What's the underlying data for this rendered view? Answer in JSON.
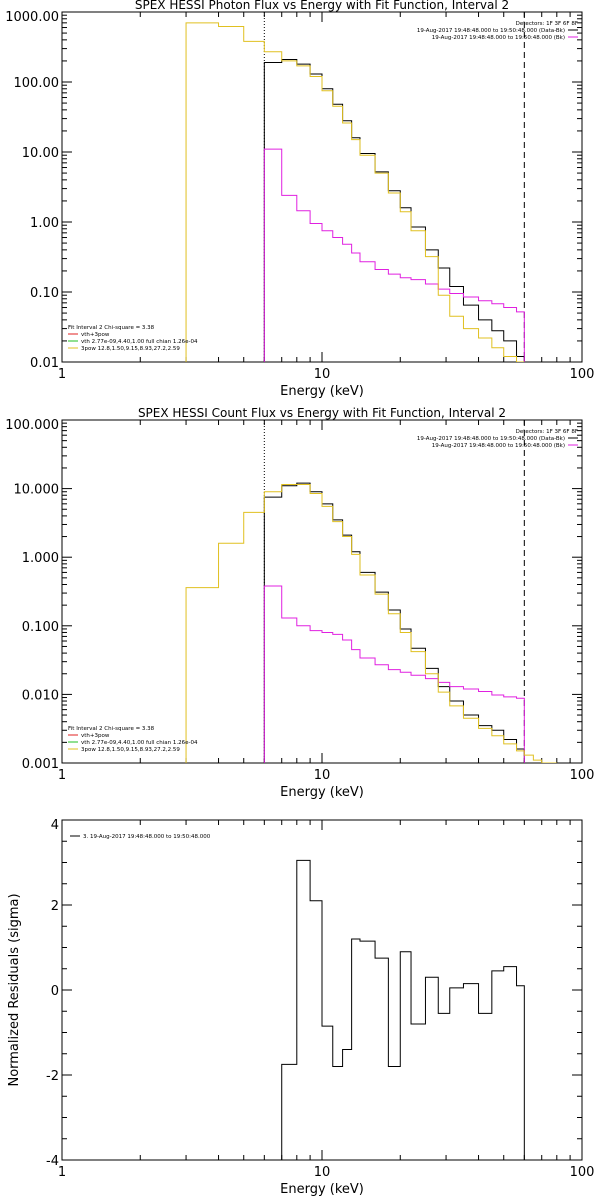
{
  "chart_data": [
    {
      "type": "line",
      "title": "SPEX HESSI Photon Flux vs Energy with Fit Function, Interval 2",
      "xlabel": "Energy (keV)",
      "ylabel": "",
      "xscale": "log",
      "yscale": "log",
      "xlim": [
        1,
        100
      ],
      "ylim": [
        0.01,
        1000
      ],
      "xticks": [
        "1",
        "10",
        "100"
      ],
      "yticks": [
        "0.01",
        "0.10",
        "1.00",
        "10.00",
        "100.00",
        "1000.00"
      ],
      "vlines": [
        {
          "x": 6,
          "style": "dotted"
        },
        {
          "x": 60,
          "style": "dashed"
        }
      ],
      "legend_top_right": [
        {
          "text": "Detectors: 1F 3F 6F 8F",
          "color": "#000000",
          "marker": false
        },
        {
          "text": "19-Aug-2017 19:48:48.000 to 19:50:48.000 (Data-Bk)",
          "color": "#000000",
          "marker": true
        },
        {
          "text": "19-Aug-2017 19:48:48.000 to 19:50:48.000 (Bk)",
          "color": "#e020e0",
          "marker": true
        }
      ],
      "legend_bottom_left": [
        {
          "text": "Fit Interval 2   Chi-square = 3.38",
          "color": "#000000",
          "marker": false
        },
        {
          "text": "vth+3pow",
          "color": "#e02020",
          "marker": true
        },
        {
          "text": "vth 2.77e-09,4.40,1.00  full chian 1.26e-04",
          "color": "#20c020",
          "marker": true
        },
        {
          "text": "3pow 12.8,1.50,9.15,8.93,27.2,2.59",
          "color": "#e0c020",
          "marker": true
        }
      ],
      "series": [
        {
          "color": "#000000",
          "edges": [
            6,
            7,
            8,
            9,
            10,
            11,
            12,
            13,
            14,
            16,
            18,
            20,
            22,
            25,
            28,
            31,
            35,
            40,
            45,
            50,
            56,
            60
          ],
          "values": [
            190,
            210,
            180,
            130,
            80,
            48,
            28,
            16,
            9.5,
            5.2,
            2.8,
            1.6,
            0.85,
            0.4,
            0.22,
            0.12,
            0.065,
            0.04,
            0.028,
            0.02,
            0.012
          ]
        },
        {
          "color": "#e020e0",
          "edges": [
            6,
            7,
            8,
            9,
            10,
            11,
            12,
            13,
            14,
            16,
            18,
            20,
            22,
            25,
            28,
            31,
            35,
            40,
            45,
            50,
            56,
            60
          ],
          "values": [
            11,
            2.4,
            1.45,
            0.95,
            0.75,
            0.6,
            0.48,
            0.36,
            0.27,
            0.21,
            0.18,
            0.16,
            0.15,
            0.13,
            0.11,
            0.095,
            0.085,
            0.075,
            0.068,
            0.06,
            0.052
          ]
        },
        {
          "color": "#e0c020",
          "edges": [
            3,
            4,
            5,
            6,
            7,
            8,
            9,
            10,
            11,
            12,
            13,
            14,
            16,
            18,
            20,
            22,
            25,
            28,
            31,
            35,
            40,
            45,
            50,
            56,
            60
          ],
          "values": [
            700,
            620,
            380,
            270,
            200,
            170,
            120,
            75,
            45,
            26,
            15,
            9,
            5,
            2.6,
            1.4,
            0.75,
            0.32,
            0.09,
            0.045,
            0.03,
            0.022,
            0.016,
            0.012,
            0.01
          ]
        }
      ]
    },
    {
      "type": "line",
      "title": "SPEX HESSI Count Flux vs Energy with Fit Function, Interval 2",
      "xlabel": "Energy (keV)",
      "ylabel": "",
      "xscale": "log",
      "yscale": "log",
      "xlim": [
        1,
        100
      ],
      "ylim": [
        0.001,
        100
      ],
      "xticks": [
        "1",
        "10",
        "100"
      ],
      "yticks": [
        "0.001",
        "0.010",
        "0.100",
        "1.000",
        "10.000",
        "100.000"
      ],
      "vlines": [
        {
          "x": 6,
          "style": "dotted"
        },
        {
          "x": 60,
          "style": "dashed"
        }
      ],
      "legend_top_right": [
        {
          "text": "Detectors: 1F 3F 6F 8F",
          "color": "#000000",
          "marker": false
        },
        {
          "text": "19-Aug-2017 19:48:48.000 to 19:50:48.000 (Data-Bk)",
          "color": "#000000",
          "marker": true
        },
        {
          "text": "19-Aug-2017 19:48:48.000 to 19:50:48.000 (Bk)",
          "color": "#e020e0",
          "marker": true
        }
      ],
      "legend_bottom_left": [
        {
          "text": "Fit Interval 2   Chi-square = 3.38",
          "color": "#000000",
          "marker": false
        },
        {
          "text": "vth+3pow",
          "color": "#e02020",
          "marker": true
        },
        {
          "text": "vth 2.77e-09,4.40,1.00  full chian 1.26e-04",
          "color": "#20c020",
          "marker": true
        },
        {
          "text": "3pow 12.8,1.50,9.15,8.93,27.2,2.59",
          "color": "#e0c020",
          "marker": true
        }
      ],
      "series": [
        {
          "color": "#000000",
          "edges": [
            6,
            7,
            8,
            9,
            10,
            11,
            12,
            13,
            14,
            16,
            18,
            20,
            22,
            25,
            28,
            31,
            35,
            40,
            45,
            50,
            56,
            60
          ],
          "values": [
            7.5,
            11,
            12,
            9,
            6,
            3.5,
            2.1,
            1.2,
            0.6,
            0.31,
            0.17,
            0.09,
            0.047,
            0.024,
            0.013,
            0.008,
            0.005,
            0.0035,
            0.003,
            0.0022,
            0.0016
          ]
        },
        {
          "color": "#e020e0",
          "edges": [
            6,
            7,
            8,
            9,
            10,
            11,
            12,
            13,
            14,
            16,
            18,
            20,
            22,
            25,
            28,
            31,
            35,
            40,
            45,
            50,
            56,
            60
          ],
          "values": [
            0.38,
            0.13,
            0.1,
            0.085,
            0.08,
            0.075,
            0.062,
            0.045,
            0.034,
            0.027,
            0.023,
            0.021,
            0.019,
            0.017,
            0.015,
            0.013,
            0.012,
            0.011,
            0.0098,
            0.0092,
            0.0088
          ]
        },
        {
          "color": "#e0c020",
          "edges": [
            3,
            4,
            5,
            6,
            7,
            8,
            9,
            10,
            11,
            12,
            13,
            14,
            16,
            18,
            20,
            22,
            25,
            28,
            31,
            35,
            40,
            45,
            50,
            56,
            60,
            65,
            70,
            75,
            80
          ],
          "values": [
            0.36,
            1.6,
            4.5,
            9,
            11.5,
            11.5,
            8.5,
            5.5,
            3.3,
            2,
            1.1,
            0.55,
            0.29,
            0.15,
            0.08,
            0.042,
            0.02,
            0.0108,
            0.0068,
            0.0045,
            0.0032,
            0.0025,
            0.0019,
            0.0015,
            0.0013,
            0.0011,
            0.001,
            0.001
          ]
        }
      ]
    },
    {
      "type": "line",
      "title": "",
      "xlabel": "Energy (keV)",
      "ylabel": "Normalized Residuals (sigma)",
      "xscale": "log",
      "yscale": "linear",
      "xlim": [
        1,
        100
      ],
      "ylim": [
        -4,
        4
      ],
      "xticks": [
        "1",
        "10",
        "100"
      ],
      "yticks": [
        "-4",
        "-2",
        "0",
        "2",
        "4"
      ],
      "legend_top_left": [
        {
          "text": "3. 19-Aug-2017 19:48:48.000 to 19:50:48.000",
          "color": "#000000",
          "marker": true
        }
      ],
      "series": [
        {
          "color": "#000000",
          "edges": [
            6,
            7,
            8,
            9,
            10,
            11,
            12,
            13,
            14,
            16,
            18,
            20,
            22,
            25,
            28,
            31,
            35,
            40,
            45,
            50,
            56,
            60
          ],
          "values": [
            -4.0,
            -1.75,
            3.05,
            2.1,
            -0.85,
            -1.8,
            -1.4,
            1.2,
            1.15,
            0.75,
            -1.8,
            0.9,
            -0.8,
            0.3,
            -0.55,
            0.05,
            0.15,
            -0.55,
            0.45,
            0.55,
            0.1
          ]
        }
      ]
    }
  ]
}
